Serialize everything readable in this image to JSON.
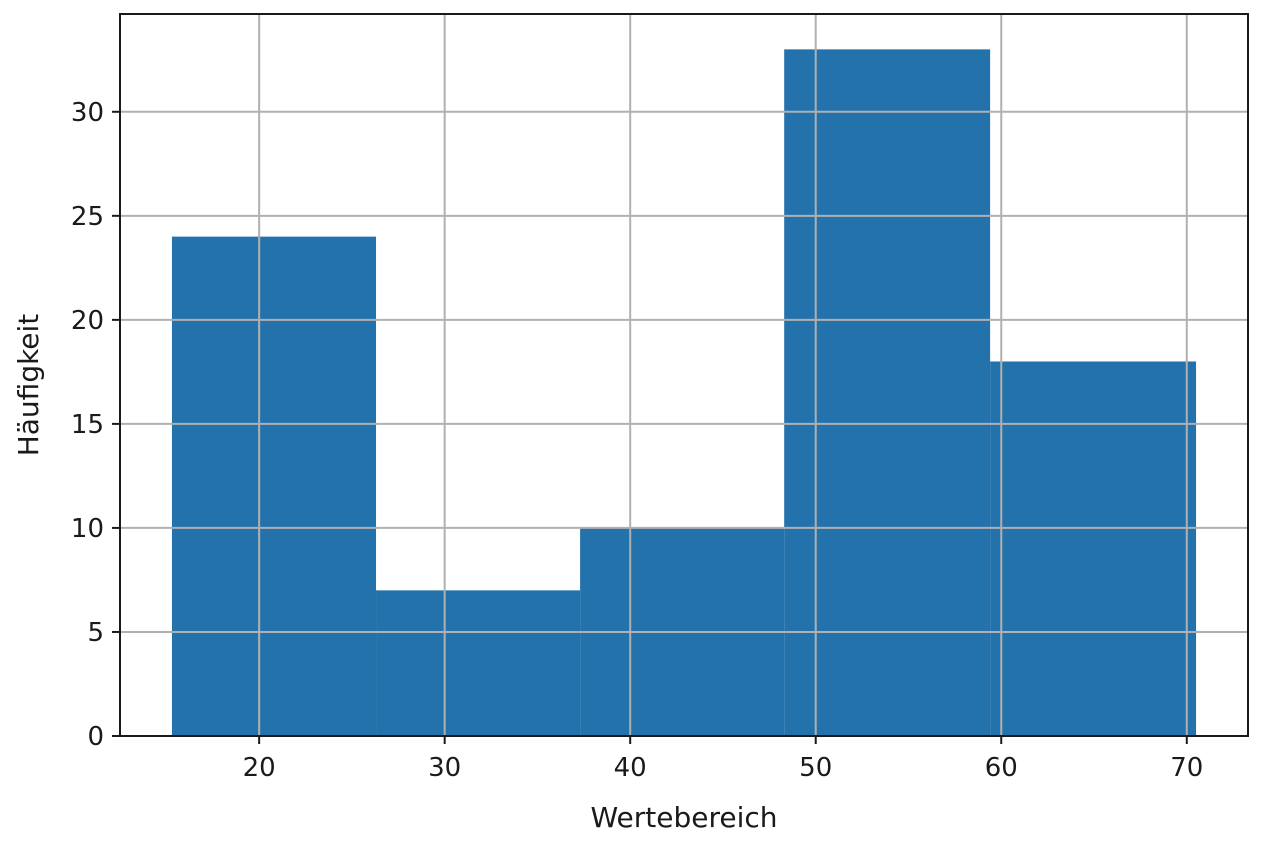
{
  "chart_data": {
    "type": "histogram",
    "title": "",
    "xlabel": "Wertebereich",
    "ylabel": "Häufigkeit",
    "bins": [
      {
        "from": 15.3,
        "to": 26.3,
        "count": 24
      },
      {
        "from": 26.3,
        "to": 37.3,
        "count": 7
      },
      {
        "from": 37.3,
        "to": 48.3,
        "count": 10
      },
      {
        "from": 48.3,
        "to": 59.4,
        "count": 33
      },
      {
        "from": 59.4,
        "to": 70.5,
        "count": 18
      }
    ],
    "xlim": [
      12.5,
      73.3
    ],
    "ylim": [
      0,
      34.7
    ],
    "xticks": [
      20,
      30,
      40,
      50,
      60,
      70
    ],
    "yticks": [
      0,
      5,
      10,
      15,
      20,
      25,
      30
    ],
    "grid": true,
    "colors": {
      "bar": "#2472ab",
      "grid": "#b0b0b0",
      "axis": "#1a1a1a"
    }
  }
}
